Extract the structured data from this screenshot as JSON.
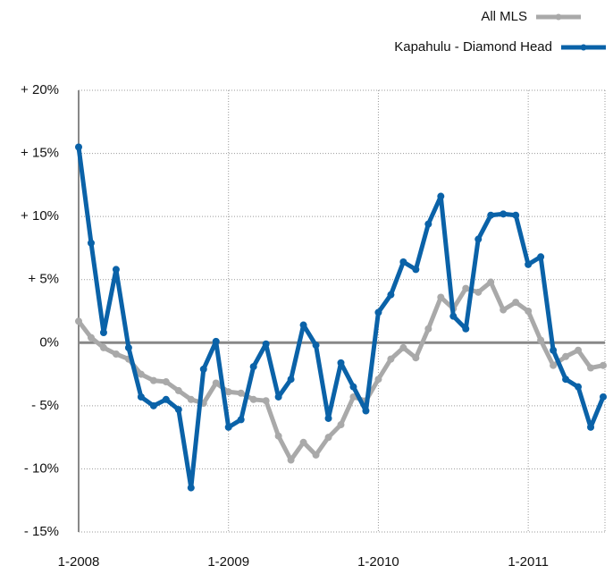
{
  "chart_data": {
    "type": "line",
    "categories": [
      "1-2008",
      null,
      null,
      null,
      null,
      null,
      null,
      null,
      null,
      null,
      null,
      null,
      "1-2009",
      null,
      null,
      null,
      null,
      null,
      null,
      null,
      null,
      null,
      null,
      null,
      "1-2010",
      null,
      null,
      null,
      null,
      null,
      null,
      null,
      null,
      null,
      null,
      null,
      "1-2011",
      null,
      null,
      null,
      null,
      null,
      null
    ],
    "series": [
      {
        "name": "All MLS",
        "color": "#a9a9a9",
        "values": [
          1.7,
          0.4,
          -0.4,
          -0.9,
          -1.3,
          -2.5,
          -3.0,
          -3.1,
          -3.8,
          -4.5,
          -4.8,
          -3.2,
          -3.9,
          -4.0,
          -4.5,
          -4.6,
          -7.4,
          -9.3,
          -7.9,
          -8.9,
          -7.5,
          -6.5,
          -4.3,
          -4.6,
          -2.9,
          -1.3,
          -0.4,
          -1.2,
          1.1,
          3.6,
          2.7,
          4.3,
          4.0,
          4.8,
          2.6,
          3.2,
          2.5,
          0.2,
          -1.8,
          -1.1,
          -0.6,
          -2.0,
          -1.8
        ]
      },
      {
        "name": "Kapahulu - Diamond Head",
        "color": "#0a62a8",
        "values": [
          15.5,
          7.9,
          0.8,
          5.8,
          -0.4,
          -4.3,
          -5.0,
          -4.5,
          -5.3,
          -11.5,
          -2.1,
          0.1,
          -6.7,
          -6.1,
          -1.9,
          -0.1,
          -4.3,
          -2.9,
          1.4,
          -0.2,
          -6.0,
          -1.6,
          -3.5,
          -5.4,
          2.4,
          3.8,
          6.4,
          5.8,
          9.4,
          11.6,
          2.1,
          1.1,
          8.2,
          10.1,
          10.2,
          10.1,
          6.2,
          6.8,
          -0.6,
          -2.9,
          -3.5,
          -6.7,
          -4.3
        ]
      }
    ],
    "ylim": [
      -15,
      20
    ],
    "yticks": [
      {
        "value": -15,
        "label": "- 15%"
      },
      {
        "value": -10,
        "label": "- 10%"
      },
      {
        "value": -5,
        "label": "- 5%"
      },
      {
        "value": 0,
        "label": "0%"
      },
      {
        "value": 5,
        "label": "+ 5%"
      },
      {
        "value": 10,
        "label": "+ 10%"
      },
      {
        "value": 15,
        "label": "+ 15%"
      },
      {
        "value": 20,
        "label": "+ 20%"
      }
    ],
    "grid": true,
    "legend": "top-right"
  }
}
